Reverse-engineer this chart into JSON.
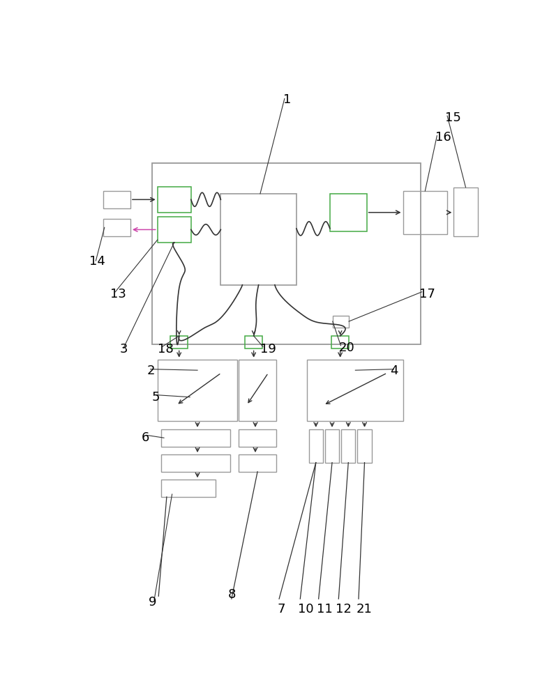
{
  "bg_color": "#ffffff",
  "line_color": "#333333",
  "box_gray": "#999999",
  "box_green": "#44aa44",
  "box_pink": "#cc44aa",
  "arrow_gray": "#555555"
}
